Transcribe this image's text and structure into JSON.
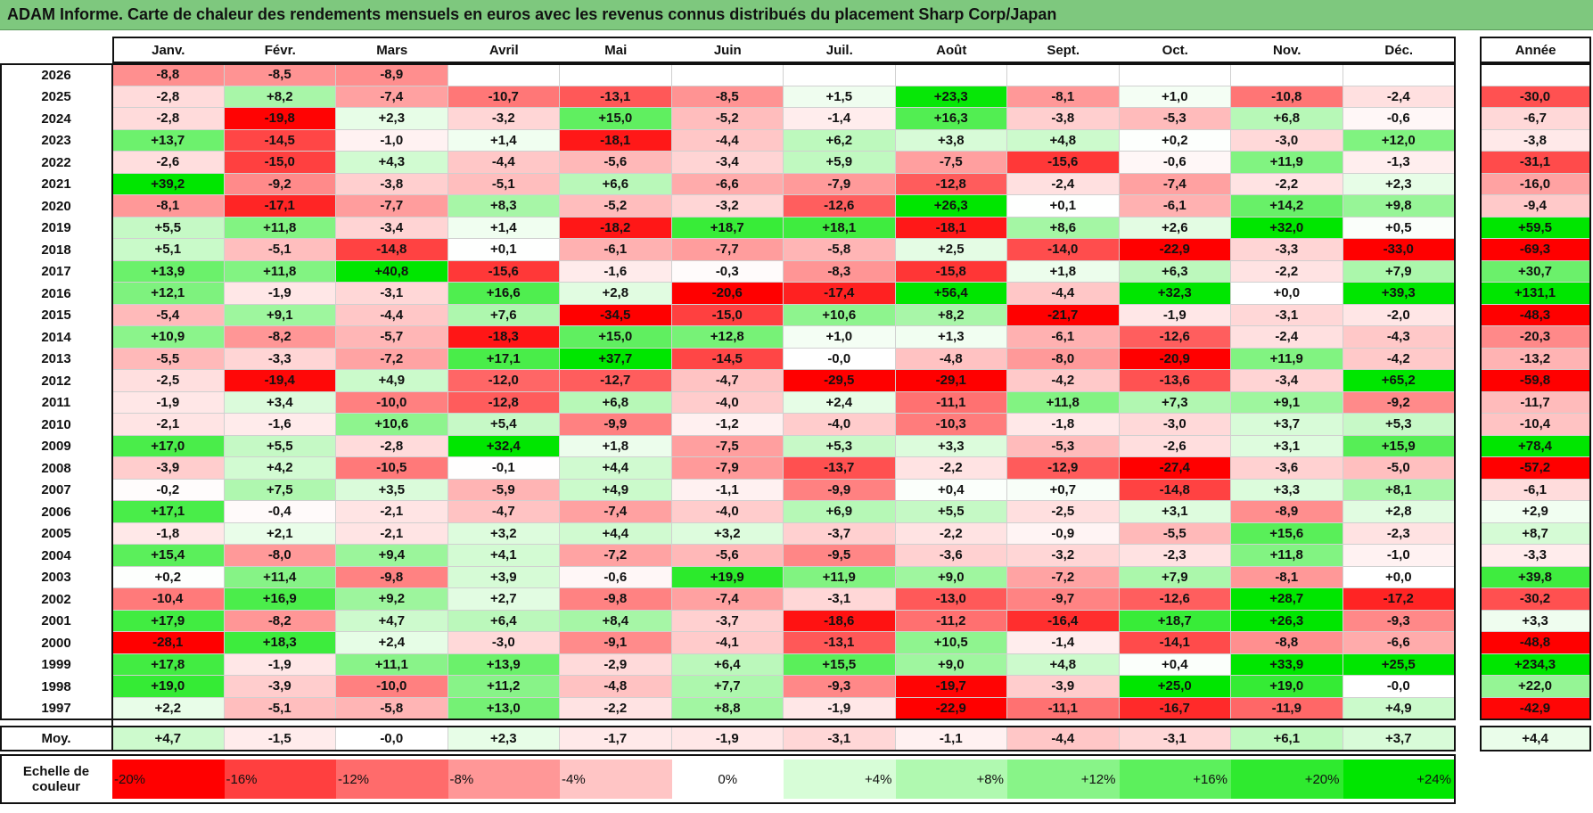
{
  "title": "ADAM Informe. Carte de chaleur des rendements mensuels en euros avec les revenus connus distribués du placement Sharp Corp/Japan",
  "chart_data": {
    "type": "heatmap",
    "title": "ADAM Informe. Carte de chaleur des rendements mensuels en euros avec les revenus connus distribués du placement Sharp Corp/Japan",
    "columns": [
      "Janv.",
      "Févr.",
      "Mars",
      "Avril",
      "Mai",
      "Juin",
      "Juil.",
      "Août",
      "Sept.",
      "Oct.",
      "Nov.",
      "Déc."
    ],
    "year_column_label": "Année",
    "rows": [
      {
        "year": "2026",
        "values": [
          "-8,8",
          "-8,5",
          "-8,9",
          "",
          "",
          "",
          "",
          "",
          "",
          "",
          "",
          ""
        ],
        "annual": ""
      },
      {
        "year": "2025",
        "values": [
          "-2,8",
          "+8,2",
          "-7,4",
          "-10,7",
          "-13,1",
          "-8,5",
          "+1,5",
          "+23,3",
          "-8,1",
          "+1,0",
          "-10,8",
          "-2,4"
        ],
        "annual": "-30,0"
      },
      {
        "year": "2024",
        "values": [
          "-2,8",
          "-19,8",
          "+2,3",
          "-3,2",
          "+15,0",
          "-5,2",
          "-1,4",
          "+16,3",
          "-3,8",
          "-5,3",
          "+6,8",
          "-0,6"
        ],
        "annual": "-6,7"
      },
      {
        "year": "2023",
        "values": [
          "+13,7",
          "-14,5",
          "-1,0",
          "+1,4",
          "-18,1",
          "-4,4",
          "+6,2",
          "+3,8",
          "+4,8",
          "+0,2",
          "-3,0",
          "+12,0"
        ],
        "annual": "-3,8"
      },
      {
        "year": "2022",
        "values": [
          "-2,6",
          "-15,0",
          "+4,3",
          "-4,4",
          "-5,6",
          "-3,4",
          "+5,9",
          "-7,5",
          "-15,6",
          "-0,6",
          "+11,9",
          "-1,3"
        ],
        "annual": "-31,1"
      },
      {
        "year": "2021",
        "values": [
          "+39,2",
          "-9,2",
          "-3,8",
          "-5,1",
          "+6,6",
          "-6,6",
          "-7,9",
          "-12,8",
          "-2,4",
          "-7,4",
          "-2,2",
          "+2,3"
        ],
        "annual": "-16,0"
      },
      {
        "year": "2020",
        "values": [
          "-8,1",
          "-17,1",
          "-7,7",
          "+8,3",
          "-5,2",
          "-3,2",
          "-12,6",
          "+26,3",
          "+0,1",
          "-6,1",
          "+14,2",
          "+9,8"
        ],
        "annual": "-9,4"
      },
      {
        "year": "2019",
        "values": [
          "+5,5",
          "+11,8",
          "-3,4",
          "+1,4",
          "-18,2",
          "+18,7",
          "+18,1",
          "-18,1",
          "+8,6",
          "+2,6",
          "+32,0",
          "+0,5"
        ],
        "annual": "+59,5"
      },
      {
        "year": "2018",
        "values": [
          "+5,1",
          "-5,1",
          "-14,8",
          "+0,1",
          "-6,1",
          "-7,7",
          "-5,8",
          "+2,5",
          "-14,0",
          "-22,9",
          "-3,3",
          "-33,0"
        ],
        "annual": "-69,3"
      },
      {
        "year": "2017",
        "values": [
          "+13,9",
          "+11,8",
          "+40,8",
          "-15,6",
          "-1,6",
          "-0,3",
          "-8,3",
          "-15,8",
          "+1,8",
          "+6,3",
          "-2,2",
          "+7,9"
        ],
        "annual": "+30,7"
      },
      {
        "year": "2016",
        "values": [
          "+12,1",
          "-1,9",
          "-3,1",
          "+16,6",
          "+2,8",
          "-20,6",
          "-17,4",
          "+56,4",
          "-4,4",
          "+32,3",
          "+0,0",
          "+39,3"
        ],
        "annual": "+131,1"
      },
      {
        "year": "2015",
        "values": [
          "-5,4",
          "+9,1",
          "-4,4",
          "+7,6",
          "-34,5",
          "-15,0",
          "+10,6",
          "+8,2",
          "-21,7",
          "-1,9",
          "-3,1",
          "-2,0"
        ],
        "annual": "-48,3"
      },
      {
        "year": "2014",
        "values": [
          "+10,9",
          "-8,2",
          "-5,7",
          "-18,3",
          "+15,0",
          "+12,8",
          "+1,0",
          "+1,3",
          "-6,1",
          "-12,6",
          "-2,4",
          "-4,3"
        ],
        "annual": "-20,3"
      },
      {
        "year": "2013",
        "values": [
          "-5,5",
          "-3,3",
          "-7,2",
          "+17,1",
          "+37,7",
          "-14,5",
          "-0,0",
          "-4,8",
          "-8,0",
          "-20,9",
          "+11,9",
          "-4,2"
        ],
        "annual": "-13,2"
      },
      {
        "year": "2012",
        "values": [
          "-2,5",
          "-19,4",
          "+4,9",
          "-12,0",
          "-12,7",
          "-4,7",
          "-29,5",
          "-29,1",
          "-4,2",
          "-13,6",
          "-3,4",
          "+65,2"
        ],
        "annual": "-59,8"
      },
      {
        "year": "2011",
        "values": [
          "-1,9",
          "+3,4",
          "-10,0",
          "-12,8",
          "+6,8",
          "-4,0",
          "+2,4",
          "-11,1",
          "+11,8",
          "+7,3",
          "+9,1",
          "-9,2"
        ],
        "annual": "-11,7"
      },
      {
        "year": "2010",
        "values": [
          "-2,1",
          "-1,6",
          "+10,6",
          "+5,4",
          "-9,9",
          "-1,2",
          "-4,0",
          "-10,3",
          "-1,8",
          "-3,0",
          "+3,7",
          "+5,3"
        ],
        "annual": "-10,4"
      },
      {
        "year": "2009",
        "values": [
          "+17,0",
          "+5,5",
          "-2,8",
          "+32,4",
          "+1,8",
          "-7,5",
          "+5,3",
          "+3,3",
          "-5,3",
          "-2,6",
          "+3,1",
          "+15,9"
        ],
        "annual": "+78,4"
      },
      {
        "year": "2008",
        "values": [
          "-3,9",
          "+4,2",
          "-10,5",
          "-0,1",
          "+4,4",
          "-7,9",
          "-13,7",
          "-2,2",
          "-12,9",
          "-27,4",
          "-3,6",
          "-5,0"
        ],
        "annual": "-57,2"
      },
      {
        "year": "2007",
        "values": [
          "-0,2",
          "+7,5",
          "+3,5",
          "-5,9",
          "+4,9",
          "-1,1",
          "-9,9",
          "+0,4",
          "+0,7",
          "-14,8",
          "+3,3",
          "+8,1"
        ],
        "annual": "-6,1"
      },
      {
        "year": "2006",
        "values": [
          "+17,1",
          "-0,4",
          "-2,1",
          "-4,7",
          "-7,4",
          "-4,0",
          "+6,9",
          "+5,5",
          "-2,5",
          "+3,1",
          "-8,9",
          "+2,8"
        ],
        "annual": "+2,9"
      },
      {
        "year": "2005",
        "values": [
          "-1,8",
          "+2,1",
          "-2,1",
          "+3,2",
          "+4,4",
          "+3,2",
          "-3,7",
          "-2,2",
          "-0,9",
          "-5,5",
          "+15,6",
          "-2,3"
        ],
        "annual": "+8,7"
      },
      {
        "year": "2004",
        "values": [
          "+15,4",
          "-8,0",
          "+9,4",
          "+4,1",
          "-7,2",
          "-5,6",
          "-9,5",
          "-3,6",
          "-3,2",
          "-2,3",
          "+11,8",
          "-1,0"
        ],
        "annual": "-3,3"
      },
      {
        "year": "2003",
        "values": [
          "+0,2",
          "+11,4",
          "-9,8",
          "+3,9",
          "-0,6",
          "+19,9",
          "+11,9",
          "+9,0",
          "-7,2",
          "+7,9",
          "-8,1",
          "+0,0"
        ],
        "annual": "+39,8"
      },
      {
        "year": "2002",
        "values": [
          "-10,4",
          "+16,9",
          "+9,2",
          "+2,7",
          "-9,8",
          "-7,4",
          "-3,1",
          "-13,0",
          "-9,7",
          "-12,6",
          "+28,7",
          "-17,2"
        ],
        "annual": "-30,2"
      },
      {
        "year": "2001",
        "values": [
          "+17,9",
          "-8,2",
          "+4,7",
          "+6,4",
          "+8,4",
          "-3,7",
          "-18,6",
          "-11,2",
          "-16,4",
          "+18,7",
          "+26,3",
          "-9,3"
        ],
        "annual": "+3,3"
      },
      {
        "year": "2000",
        "values": [
          "-28,1",
          "+18,3",
          "+2,4",
          "-3,0",
          "-9,1",
          "-4,1",
          "-13,1",
          "+10,5",
          "-1,4",
          "-14,1",
          "-8,8",
          "-6,6"
        ],
        "annual": "-48,8"
      },
      {
        "year": "1999",
        "values": [
          "+17,8",
          "-1,9",
          "+11,1",
          "+13,9",
          "-2,9",
          "+6,4",
          "+15,5",
          "+9,0",
          "+4,8",
          "+0,4",
          "+33,9",
          "+25,5"
        ],
        "annual": "+234,3"
      },
      {
        "year": "1998",
        "values": [
          "+19,0",
          "-3,9",
          "-10,0",
          "+11,2",
          "-4,8",
          "+7,7",
          "-9,3",
          "-19,7",
          "-3,9",
          "+25,0",
          "+19,0",
          "-0,0"
        ],
        "annual": "+22,0"
      },
      {
        "year": "1997",
        "values": [
          "+2,2",
          "-5,1",
          "-5,8",
          "+13,0",
          "-2,2",
          "+8,8",
          "-1,9",
          "-22,9",
          "-11,1",
          "-16,7",
          "-11,9",
          "+4,9"
        ],
        "annual": "-42,9"
      }
    ],
    "average": {
      "label": "Moy.",
      "values": [
        "+4,7",
        "-1,5",
        "-0,0",
        "+2,3",
        "-1,7",
        "-1,9",
        "-3,1",
        "-1,1",
        "-4,4",
        "-3,1",
        "+6,1",
        "+3,7"
      ],
      "annual": "+4,4"
    },
    "color_scale": {
      "label_line1": "Echelle de",
      "label_line2": "couleur",
      "stops": [
        {
          "label": "-20%",
          "value": -20,
          "color": "#ff0000"
        },
        {
          "label": "-16%",
          "value": -16,
          "color": "#ff3f3f"
        },
        {
          "label": "-12%",
          "value": -12,
          "color": "#ff6b6b"
        },
        {
          "label": "-8%",
          "value": -8,
          "color": "#ff9797"
        },
        {
          "label": "-4%",
          "value": -4,
          "color": "#ffc5c5"
        },
        {
          "label": "0%",
          "value": 0,
          "color": "#ffffff"
        },
        {
          "label": "+4%",
          "value": 4,
          "color": "#d7fdd7"
        },
        {
          "label": "+8%",
          "value": 8,
          "color": "#b0f9b0"
        },
        {
          "label": "+12%",
          "value": 12,
          "color": "#88f488"
        },
        {
          "label": "+16%",
          "value": 16,
          "color": "#5cf05c"
        },
        {
          "label": "+20%",
          "value": 20,
          "color": "#2fea2f"
        },
        {
          "label": "+24%",
          "value": 24,
          "color": "#00e600"
        }
      ]
    }
  }
}
